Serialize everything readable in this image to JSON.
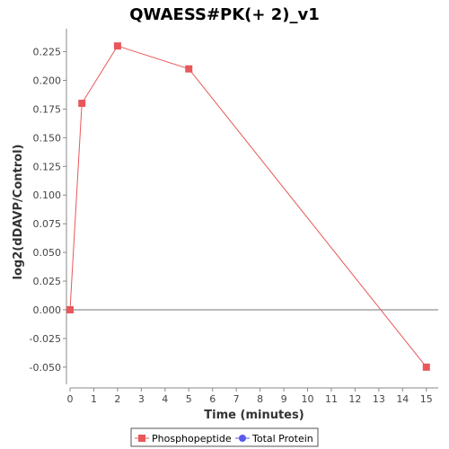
{
  "chart_data": {
    "type": "line",
    "title": "QWAESS#PK(+ 2)_v1",
    "xlabel": "Time (minutes)",
    "ylabel": "log2(dDAVP/Control)",
    "xlim": [
      0,
      15.5
    ],
    "ylim": [
      -0.065,
      0.245
    ],
    "x_ticks": [
      0,
      1,
      2,
      3,
      4,
      5,
      6,
      7,
      8,
      9,
      10,
      11,
      12,
      13,
      14,
      15
    ],
    "y_ticks": [
      -0.05,
      -0.025,
      0.0,
      0.025,
      0.05,
      0.075,
      0.1,
      0.125,
      0.15,
      0.175,
      0.2,
      0.225
    ],
    "y_tick_labels": [
      "-0.050",
      "-0.025",
      "0.000",
      "0.025",
      "0.050",
      "0.075",
      "0.100",
      "0.125",
      "0.150",
      "0.175",
      "0.200",
      "0.225"
    ],
    "series": [
      {
        "name": "Phosphopeptide",
        "color": "#e8575a",
        "marker": "square",
        "x": [
          0,
          0.5,
          2,
          5,
          15
        ],
        "y": [
          0.0,
          0.18,
          0.23,
          0.21,
          -0.05
        ]
      },
      {
        "name": "Total Protein",
        "color": "#5a5aee",
        "marker": "circle",
        "x": [],
        "y": []
      }
    ],
    "zero_line": true,
    "grid": false,
    "legend": "bottom"
  }
}
